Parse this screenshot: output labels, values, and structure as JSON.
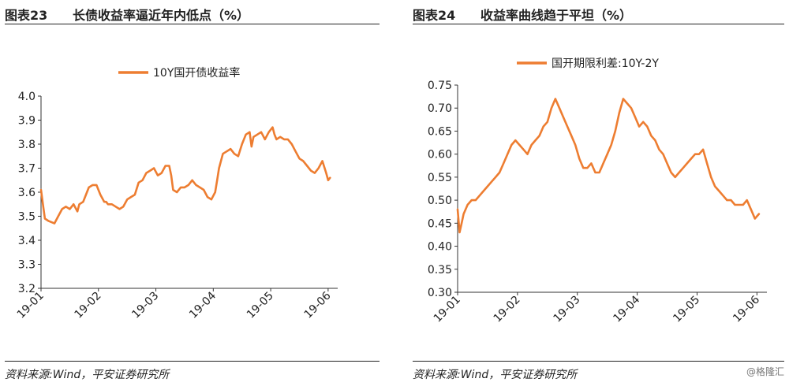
{
  "left": {
    "fig_label": "图表23",
    "title": "长债收益率逼近年内低点（%）",
    "source": "资料来源:Wind，平安证券研究所"
  },
  "right": {
    "fig_label": "图表24",
    "title": "收益率曲线趋于平坦（%）",
    "source": "资料来源:Wind，平安证券研究所"
  },
  "watermark": "@格隆汇",
  "colors": {
    "series": "#ED7D31",
    "axis": "#333333"
  },
  "chart_data": [
    {
      "type": "line",
      "x_ticks": [
        "19-01",
        "19-02",
        "19-03",
        "19-04",
        "19-05",
        "19-06"
      ],
      "x_range": [
        0,
        155
      ],
      "y_ticks": [
        "4.0",
        "3.9",
        "3.8",
        "3.7",
        "3.6",
        "3.5",
        "3.4",
        "3.3",
        "3.2"
      ],
      "ylim": [
        3.2,
        4.0
      ],
      "legend": "top-center",
      "series": [
        {
          "name": "10Y国开债收益率",
          "x": [
            0,
            1,
            2,
            4,
            7,
            9,
            11,
            13,
            15,
            17,
            19,
            20,
            22,
            23,
            25,
            27,
            29,
            31,
            33,
            34,
            35,
            37,
            39,
            41,
            43,
            45,
            47,
            49,
            51,
            53,
            55,
            57,
            59,
            61,
            63,
            65,
            67,
            68,
            69,
            71,
            73,
            75,
            77,
            79,
            81,
            83,
            85,
            87,
            89,
            91,
            92,
            93,
            95,
            97,
            99,
            101,
            103,
            105,
            107,
            109,
            110,
            111,
            113,
            115,
            117,
            119,
            121,
            122,
            123,
            125,
            127,
            129,
            131,
            133,
            135,
            137,
            139,
            141,
            143,
            145,
            147,
            149,
            150,
            151
          ],
          "y": [
            3.61,
            3.55,
            3.49,
            3.48,
            3.47,
            3.5,
            3.53,
            3.54,
            3.53,
            3.55,
            3.52,
            3.55,
            3.56,
            3.58,
            3.62,
            3.63,
            3.63,
            3.59,
            3.56,
            3.56,
            3.55,
            3.55,
            3.54,
            3.53,
            3.54,
            3.57,
            3.58,
            3.59,
            3.64,
            3.65,
            3.68,
            3.69,
            3.7,
            3.67,
            3.68,
            3.71,
            3.71,
            3.67,
            3.61,
            3.6,
            3.62,
            3.62,
            3.63,
            3.65,
            3.63,
            3.62,
            3.61,
            3.58,
            3.57,
            3.6,
            3.65,
            3.7,
            3.76,
            3.77,
            3.78,
            3.76,
            3.75,
            3.8,
            3.84,
            3.85,
            3.79,
            3.83,
            3.84,
            3.85,
            3.82,
            3.85,
            3.87,
            3.84,
            3.82,
            3.83,
            3.82,
            3.82,
            3.8,
            3.77,
            3.74,
            3.73,
            3.71,
            3.69,
            3.68,
            3.7,
            3.73,
            3.68,
            3.65,
            3.66
          ]
        }
      ]
    },
    {
      "type": "line",
      "x_ticks": [
        "19-01",
        "19-02",
        "19-03",
        "19-04",
        "19-05",
        "19-06"
      ],
      "x_range": [
        0,
        155
      ],
      "y_ticks": [
        "0.75",
        "0.70",
        "0.65",
        "0.60",
        "0.55",
        "0.50",
        "0.45",
        "0.40",
        "0.35",
        "0.30"
      ],
      "ylim": [
        0.3,
        0.75
      ],
      "legend": "top-center",
      "series": [
        {
          "name": "国开期限利差:10Y-2Y",
          "x": [
            0,
            1,
            2,
            3,
            5,
            7,
            9,
            11,
            13,
            15,
            17,
            19,
            21,
            23,
            25,
            27,
            29,
            31,
            33,
            35,
            37,
            39,
            41,
            43,
            45,
            47,
            49,
            51,
            53,
            55,
            57,
            59,
            61,
            63,
            65,
            67,
            69,
            71,
            73,
            75,
            77,
            79,
            81,
            83,
            85,
            87,
            89,
            91,
            93,
            95,
            97,
            99,
            101,
            103,
            105,
            107,
            109,
            111,
            113,
            115,
            117,
            119,
            121,
            123,
            125,
            127,
            129,
            131,
            133,
            135,
            137,
            139,
            141,
            143,
            145,
            147,
            149,
            151
          ],
          "y": [
            0.48,
            0.43,
            0.45,
            0.47,
            0.49,
            0.5,
            0.5,
            0.51,
            0.52,
            0.53,
            0.54,
            0.55,
            0.56,
            0.58,
            0.6,
            0.62,
            0.63,
            0.62,
            0.61,
            0.6,
            0.62,
            0.63,
            0.64,
            0.66,
            0.67,
            0.7,
            0.72,
            0.7,
            0.68,
            0.66,
            0.64,
            0.62,
            0.59,
            0.57,
            0.57,
            0.58,
            0.56,
            0.56,
            0.58,
            0.6,
            0.62,
            0.65,
            0.69,
            0.72,
            0.71,
            0.7,
            0.68,
            0.66,
            0.67,
            0.66,
            0.64,
            0.63,
            0.61,
            0.6,
            0.58,
            0.56,
            0.55,
            0.56,
            0.57,
            0.58,
            0.59,
            0.6,
            0.6,
            0.61,
            0.58,
            0.55,
            0.53,
            0.52,
            0.51,
            0.5,
            0.5,
            0.49,
            0.49,
            0.49,
            0.5,
            0.48,
            0.46,
            0.47
          ]
        }
      ]
    }
  ]
}
